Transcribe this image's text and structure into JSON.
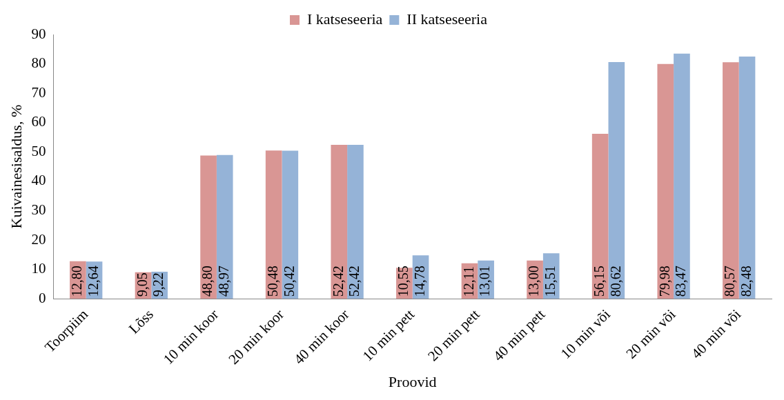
{
  "chart_data": {
    "type": "bar",
    "xlabel": "Proovid",
    "ylabel": "Kuivainesisaldus, %",
    "categories": [
      "Toorpiim",
      "Lõss",
      "10 min koor",
      "20 min koor",
      "40 min koor",
      "10 min pett",
      "20 min pett",
      "40 min pett",
      "10 min või",
      "20 min või",
      "40 min või"
    ],
    "series": [
      {
        "name": "I katseseeria",
        "color": "#d99694",
        "values": [
          12.8,
          9.05,
          48.8,
          50.48,
          52.42,
          10.55,
          12.11,
          13.0,
          56.15,
          79.98,
          80.57
        ],
        "value_labels": [
          "12,80",
          "9,05",
          "48,80",
          "50,48",
          "52,42",
          "10,55",
          "12,11",
          "13,00",
          "56,15",
          "79,98",
          "80,57"
        ]
      },
      {
        "name": "II katseseeria",
        "color": "#95b3d7",
        "values": [
          12.64,
          9.22,
          48.97,
          50.42,
          52.42,
          14.78,
          13.01,
          15.51,
          80.62,
          83.47,
          82.48
        ],
        "value_labels": [
          "12,64",
          "9,22",
          "48,97",
          "50,42",
          "52,42",
          "14,78",
          "13,01",
          "15,51",
          "80,62",
          "83,47",
          "82,48"
        ]
      }
    ],
    "ylim": [
      0,
      90
    ],
    "yticks": [
      0,
      10,
      20,
      30,
      40,
      50,
      60,
      70,
      80,
      90
    ],
    "grid": false,
    "legend": "top"
  }
}
